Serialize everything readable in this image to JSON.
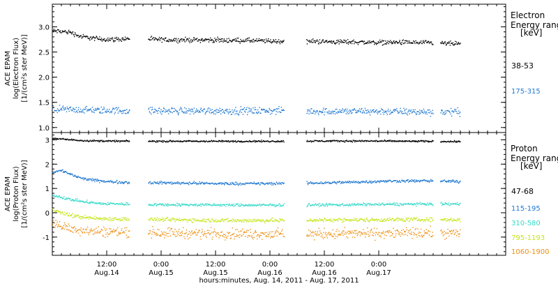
{
  "chart_data": [
    {
      "type": "scatter",
      "panel": "electron",
      "ylabel_lines": [
        "ACE EPAM",
        "log(Electron Flux)",
        "[1/(cm²s ster MeV)]"
      ],
      "yticks": [
        "1.0",
        "1.5",
        "2.0",
        "2.5",
        "3.0"
      ],
      "ylim": [
        0.9,
        3.45
      ],
      "legend_title_lines": [
        "Electron",
        "Energy range",
        "[keV]"
      ],
      "series": [
        {
          "name": "38-53",
          "color": "#000000",
          "x_hours": [
            0,
            4,
            6,
            10,
            12,
            14,
            18,
            22,
            26,
            30,
            34,
            38,
            42,
            46,
            50,
            54,
            58,
            62,
            66,
            70,
            74,
            78,
            82,
            86,
            90
          ],
          "y": [
            2.93,
            2.9,
            2.82,
            2.77,
            2.76,
            2.76,
            2.78,
            2.76,
            2.75,
            2.75,
            2.75,
            2.74,
            2.74,
            2.73,
            2.72,
            2.72,
            2.72,
            2.71,
            2.71,
            2.7,
            2.7,
            2.7,
            2.69,
            2.68,
            2.67
          ],
          "spread": 0.04
        },
        {
          "name": "175-315",
          "color": "#1f78d1",
          "x_hours": [
            0,
            10,
            20,
            30,
            40,
            50,
            60,
            70,
            80,
            90
          ],
          "y": [
            1.37,
            1.35,
            1.34,
            1.34,
            1.34,
            1.34,
            1.33,
            1.33,
            1.32,
            1.32
          ],
          "spread": 0.06
        }
      ]
    },
    {
      "type": "scatter",
      "panel": "proton",
      "ylabel_lines": [
        "ACE EPAM",
        "log(Proton Flux)",
        "[1/(cm²s ster MeV)]"
      ],
      "yticks": [
        "-1",
        "0",
        "1",
        "2",
        "3"
      ],
      "ylim": [
        -1.75,
        3.3
      ],
      "legend_title_lines": [
        "Proton",
        "Energy range",
        "[keV]"
      ],
      "series": [
        {
          "name": "47-68",
          "color": "#000000",
          "x_hours": [
            0,
            4,
            8,
            12,
            20,
            30,
            40,
            50,
            60,
            70,
            80,
            90
          ],
          "y": [
            3.08,
            3.02,
            2.98,
            2.97,
            2.96,
            2.96,
            2.96,
            2.96,
            2.97,
            2.97,
            2.96,
            2.95
          ],
          "spread": 0.03
        },
        {
          "name": "115-195",
          "color": "#1f78d1",
          "x_hours": [
            0,
            2,
            4,
            6,
            8,
            12,
            18,
            24,
            30,
            36,
            42,
            48,
            54,
            60,
            66,
            70,
            74,
            78,
            82,
            86,
            90
          ],
          "y": [
            1.7,
            1.75,
            1.6,
            1.45,
            1.38,
            1.3,
            1.26,
            1.25,
            1.24,
            1.22,
            1.22,
            1.22,
            1.23,
            1.25,
            1.28,
            1.3,
            1.32,
            1.33,
            1.33,
            1.32,
            1.3
          ],
          "spread": 0.05
        },
        {
          "name": "310-580",
          "color": "#36d9c8",
          "x_hours": [
            0,
            3,
            6,
            10,
            15,
            25,
            35,
            45,
            55,
            65,
            75,
            85,
            90
          ],
          "y": [
            0.75,
            0.6,
            0.5,
            0.4,
            0.38,
            0.35,
            0.34,
            0.33,
            0.34,
            0.35,
            0.37,
            0.38,
            0.37
          ],
          "spread": 0.05
        },
        {
          "name": "795-1193",
          "color": "#c6e51a",
          "x_hours": [
            0,
            3,
            6,
            10,
            20,
            30,
            40,
            50,
            60,
            70,
            80,
            90
          ],
          "y": [
            0.15,
            -0.05,
            -0.15,
            -0.22,
            -0.25,
            -0.28,
            -0.3,
            -0.3,
            -0.28,
            -0.27,
            -0.26,
            -0.27
          ],
          "spread": 0.07
        },
        {
          "name": "1060-1900",
          "color": "#ee8e0f",
          "x_hours": [
            0,
            3,
            6,
            10,
            20,
            30,
            40,
            50,
            60,
            70,
            80,
            90
          ],
          "y": [
            -0.4,
            -0.6,
            -0.68,
            -0.75,
            -0.78,
            -0.82,
            -0.84,
            -0.86,
            -0.85,
            -0.83,
            -0.82,
            -0.82
          ],
          "spread": 0.18
        }
      ]
    }
  ],
  "x_axis": {
    "xlim_hours": [
      0,
      100
    ],
    "data_gaps_hours": [
      [
        17,
        21
      ],
      [
        51,
        56
      ],
      [
        84,
        85.5
      ]
    ],
    "ticks": [
      {
        "hour": 12,
        "time": "12:00",
        "date": "Aug.14"
      },
      {
        "hour": 24,
        "time": "0:00",
        "date": "Aug.15"
      },
      {
        "hour": 36,
        "time": "12:00",
        "date": "Aug.15"
      },
      {
        "hour": 48,
        "time": "0:00",
        "date": "Aug.16"
      },
      {
        "hour": 60,
        "time": "12:00",
        "date": "Aug.16"
      },
      {
        "hour": 72,
        "time": "0:00",
        "date": "Aug.17"
      }
    ],
    "xlabel": "hours:minutes, Aug. 14, 2011 - Aug. 17, 2011"
  }
}
